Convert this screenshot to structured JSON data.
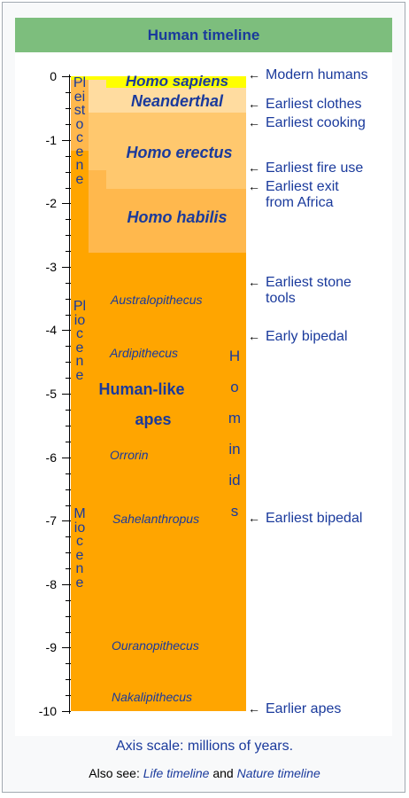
{
  "title": "Human timeline",
  "axis_ticks": [
    "0",
    "-1",
    "-2",
    "-3",
    "-4",
    "-5",
    "-6",
    "-7",
    "-8",
    "-9",
    "-10"
  ],
  "epochs": {
    "pleistocene": "Pleistocene",
    "pliocene": "Pliocene",
    "miocene": "Miocene"
  },
  "species": {
    "homo_sapiens": "Homo sapiens",
    "neanderthal": "Neanderthal",
    "homo_erectus": "Homo erectus",
    "homo_habilis": "Homo habilis",
    "human_like_1": "Human-like",
    "human_like_2": "apes"
  },
  "genera": {
    "australopithecus": "Australopithecus",
    "ardipithecus": "Ardipithecus",
    "orrorin": "Orrorin",
    "sahelanthropus": "Sahelanthropus",
    "ouranopithecus": "Ouranopithecus",
    "nakalipithecus": "Nakalipithecus"
  },
  "hominids_label": "Hominids",
  "events": {
    "modern_humans": "Modern humans",
    "earliest_clothes": "Earliest clothes",
    "earliest_cooking": "Earliest cooking",
    "earliest_fire_use": "Earliest fire use",
    "earliest_exit_1": "Earliest exit",
    "earliest_exit_2": "from Africa",
    "earliest_stone_1": "Earliest stone",
    "earliest_stone_2": "tools",
    "early_bipedal": "Early bipedal",
    "earliest_bipedal": "Earliest bipedal",
    "earlier_apes": "Earlier apes"
  },
  "caption": "Axis scale: millions of years.",
  "also_see": {
    "prefix": "Also see: ",
    "life_timeline": "Life timeline",
    "and": " and ",
    "nature_timeline": "Nature timeline"
  },
  "colors": {
    "header": "#7dbe7d",
    "apes": "#ffa500",
    "habilis": "#ffb84d",
    "erectus": "#ffc86e",
    "neanderthal": "#ffdca0",
    "sapiens": "#ffff00",
    "text_blue": "#1a3a9c"
  }
}
